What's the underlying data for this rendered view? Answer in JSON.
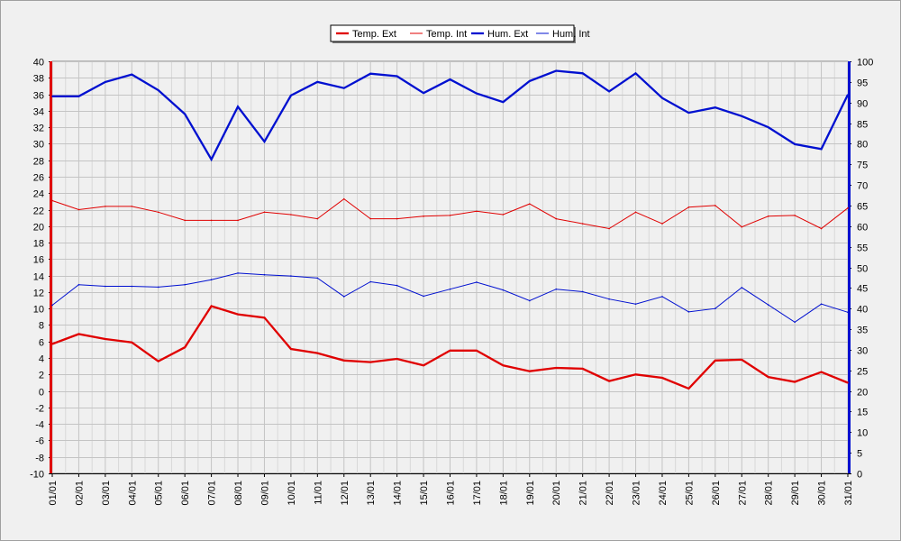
{
  "chart_data": {
    "type": "line",
    "categories": [
      "01/01",
      "02/01",
      "03/01",
      "04/01",
      "05/01",
      "06/01",
      "07/01",
      "08/01",
      "09/01",
      "10/01",
      "11/01",
      "12/01",
      "13/01",
      "14/01",
      "15/01",
      "16/01",
      "17/01",
      "18/01",
      "19/01",
      "20/01",
      "21/01",
      "22/01",
      "23/01",
      "24/01",
      "25/01",
      "26/01",
      "27/01",
      "28/01",
      "29/01",
      "30/01",
      "31/01"
    ],
    "y_left": {
      "min": -10,
      "max": 40,
      "step": 2
    },
    "y_right": {
      "min": 0,
      "max": 100,
      "step": 5
    },
    "grid": true,
    "legend_position": "top-right",
    "series": [
      {
        "name": "Temp. Ext",
        "axis": "left",
        "color": "#e00000",
        "width": "thick",
        "values": [
          5.7,
          6.9,
          6.3,
          5.9,
          3.6,
          5.3,
          10.3,
          9.3,
          8.9,
          5.1,
          4.6,
          3.7,
          3.5,
          3.9,
          3.1,
          4.9,
          4.9,
          3.1,
          2.4,
          2.8,
          2.7,
          1.2,
          2.0,
          1.6,
          0.3,
          3.7,
          3.8,
          1.7,
          1.1,
          2.3,
          1.0
        ]
      },
      {
        "name": "Temp. Int",
        "axis": "left",
        "color": "#e00000",
        "width": "thin",
        "values": [
          23.1,
          22.0,
          22.4,
          22.4,
          21.7,
          20.7,
          20.7,
          20.7,
          21.7,
          21.4,
          20.9,
          23.3,
          20.9,
          20.9,
          21.2,
          21.3,
          21.8,
          21.4,
          22.7,
          20.9,
          20.3,
          19.7,
          21.7,
          20.3,
          22.3,
          22.5,
          19.9,
          21.2,
          21.3,
          19.7,
          22.2
        ]
      },
      {
        "name": "Hum. Ext",
        "axis": "right",
        "color": "#0010d0",
        "width": "thick",
        "values": [
          91.5,
          91.5,
          95,
          96.8,
          93,
          87.2,
          76.2,
          89,
          80.5,
          91.7,
          95,
          93.5,
          97,
          96.4,
          92.3,
          95.6,
          92.2,
          90.1,
          95.2,
          97.7,
          97.1,
          92.7,
          97.1,
          91.1,
          87.5,
          88.8,
          86.7,
          84,
          79.9,
          78.7,
          91.9
        ]
      },
      {
        "name": "Hum. Int",
        "axis": "right",
        "color": "#0010d0",
        "width": "thin",
        "values": [
          40.8,
          45.8,
          45.4,
          45.4,
          45.2,
          45.8,
          47,
          48.6,
          48.2,
          47.9,
          47.4,
          42.9,
          46.5,
          45.6,
          43,
          44.7,
          46.4,
          44.5,
          41.9,
          44.7,
          44.1,
          42.3,
          41.1,
          42.9,
          39.2,
          40,
          45.1,
          40.9,
          36.7,
          41.1,
          39.1
        ]
      }
    ]
  }
}
